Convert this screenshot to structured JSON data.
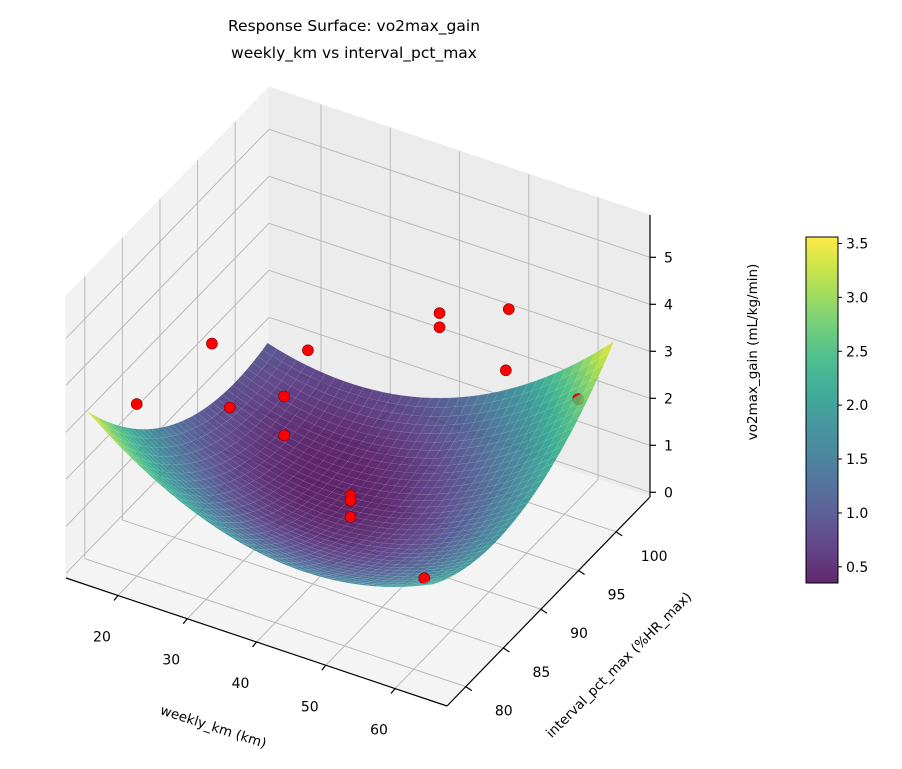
{
  "chart_data": {
    "type": "surface3d+scatter",
    "title": "Response Surface: vo2max_gain",
    "subtitle": "weekly_km vs interval_pct_max",
    "xlabel": "weekly_km (km)",
    "ylabel": "interval_pct_max (%HR_max)",
    "zlabel": "vo2max_gain (mL/kg/min)",
    "xlim": [
      12.5,
      67.5
    ],
    "ylim": [
      77.5,
      104.5
    ],
    "zlim": [
      -0.1,
      5.9
    ],
    "xticks": [
      20,
      30,
      40,
      50,
      60
    ],
    "yticks": [
      80,
      85,
      90,
      95,
      100
    ],
    "zticks": [
      0,
      1,
      2,
      3,
      4,
      5
    ],
    "grid": true,
    "colormap": "viridis",
    "surface": {
      "x_range": [
        15,
        65
      ],
      "y_range": [
        78,
        102
      ],
      "model": {
        "center": [
          40,
          90
        ],
        "c": 0.4,
        "xx": 0.0019,
        "yy": 0.0068,
        "xy": 0.0031,
        "x": 0.013,
        "y": -0.027
      },
      "alpha": 0.85
    },
    "points": [
      {
        "x": 20,
        "y": 80,
        "z": 3.56
      },
      {
        "x": 20,
        "y": 90,
        "z": 3.2
      },
      {
        "x": 28,
        "y": 85,
        "z": 3.06
      },
      {
        "x": 25,
        "y": 95,
        "z": 1.5
      },
      {
        "x": 25,
        "y": 95,
        "z": 0.67
      },
      {
        "x": 23,
        "y": 100,
        "z": 1.56
      },
      {
        "x": 40,
        "y": 90,
        "z": 0.96
      },
      {
        "x": 40,
        "y": 90,
        "z": 0.85
      },
      {
        "x": 40,
        "y": 90,
        "z": 0.5
      },
      {
        "x": 61.5,
        "y": 80,
        "z": 1.91
      },
      {
        "x": 42,
        "y": 100,
        "z": 3.29
      },
      {
        "x": 42,
        "y": 100,
        "z": 2.99
      },
      {
        "x": 52,
        "y": 100,
        "z": 3.87
      },
      {
        "x": 57,
        "y": 95,
        "z": 3.64
      },
      {
        "x": 62,
        "y": 100,
        "z": 2.45
      }
    ],
    "point_color": "#ff0000",
    "colorbar": {
      "range": [
        0.35,
        3.56
      ],
      "ticks": [
        0.5,
        1.0,
        1.5,
        2.0,
        2.5,
        3.0,
        3.5
      ],
      "tick_labels": [
        "0.5",
        "1.0",
        "1.5",
        "2.0",
        "2.5",
        "3.0",
        "3.5"
      ]
    }
  }
}
